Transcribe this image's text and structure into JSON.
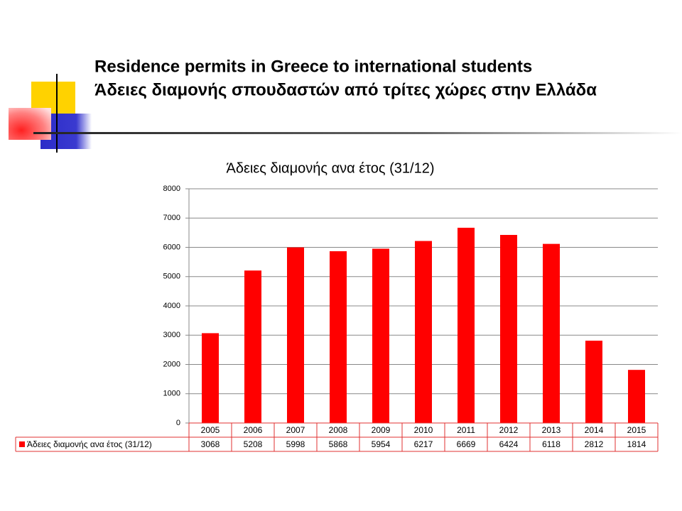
{
  "header": {
    "title_lines": [
      "Residence permits in Greece to international students",
      "Άδειες διαμονής σπουδαστών από τρίτες χώρες στην Ελλάδα"
    ]
  },
  "chart_data": {
    "type": "bar",
    "title": "Άδειες διαμονής ανα έτος (31/12)",
    "categories": [
      "2005",
      "2006",
      "2007",
      "2008",
      "2009",
      "2010",
      "2011",
      "2012",
      "2013",
      "2014",
      "2015"
    ],
    "series": [
      {
        "name": "Άδειες διαμονής ανα έτος (31/12)",
        "color": "#ff0000",
        "values": [
          3068,
          5208,
          5998,
          5868,
          5954,
          6217,
          6669,
          6424,
          6118,
          2812,
          1814
        ]
      }
    ],
    "ylim": [
      0,
      8000
    ],
    "yticks": [
      0,
      1000,
      2000,
      3000,
      4000,
      5000,
      6000,
      7000,
      8000
    ],
    "grid": true,
    "data_table": true
  }
}
